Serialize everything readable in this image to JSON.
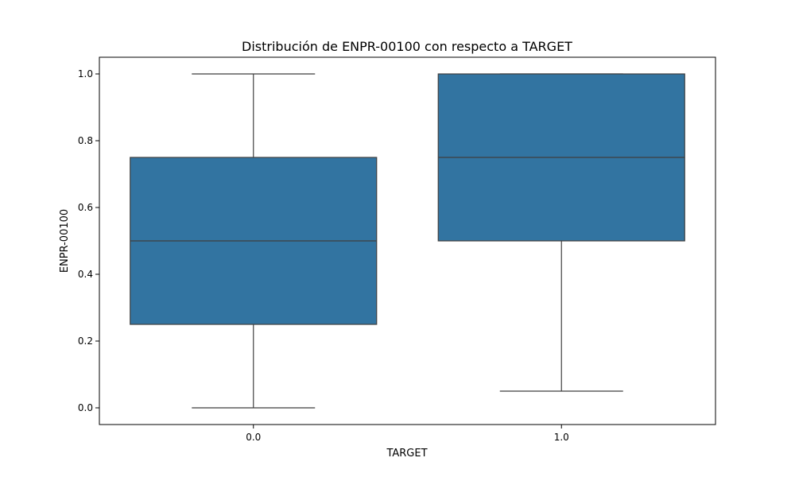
{
  "chart_data": {
    "type": "box",
    "title": "Distribución de ENPR-00100 con respecto a TARGET",
    "xlabel": "TARGET",
    "ylabel": "ENPR-00100",
    "categories": [
      "0.0",
      "1.0"
    ],
    "ylim": [
      -0.05,
      1.05
    ],
    "yticks": [
      0.0,
      0.2,
      0.4,
      0.6,
      0.8,
      1.0
    ],
    "ytick_labels": [
      "0.0",
      "0.2",
      "0.4",
      "0.6",
      "0.8",
      "1.0"
    ],
    "grid": false,
    "box_color": "#3274a1",
    "line_color": "#3f3f3f",
    "boxes": [
      {
        "category": "0.0",
        "whisker_low": 0.0,
        "q1": 0.25,
        "median": 0.5,
        "q3": 0.75,
        "whisker_high": 1.0
      },
      {
        "category": "1.0",
        "whisker_low": 0.05,
        "q1": 0.5,
        "median": 0.75,
        "q3": 1.0,
        "whisker_high": 1.0
      }
    ]
  }
}
